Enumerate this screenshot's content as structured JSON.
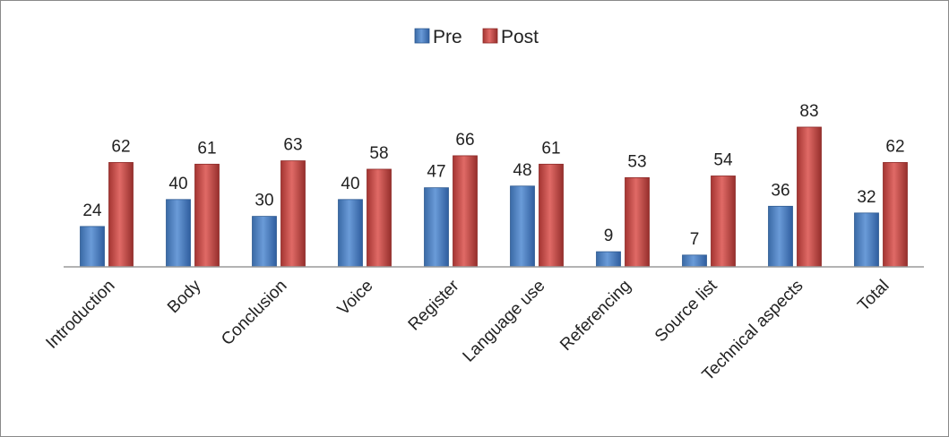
{
  "chart_data": {
    "type": "bar",
    "title": "",
    "xlabel": "",
    "ylabel": "",
    "ylim": [
      0,
      100
    ],
    "grid": false,
    "legend_position": "top",
    "categories": [
      "Introduction",
      "Body",
      "Conclusion",
      "Voice",
      "Register",
      "Language use",
      "Referencing",
      "Source list",
      "Technical aspects",
      "Total"
    ],
    "series": [
      {
        "name": "Pre",
        "color": "#4f81bd",
        "values": [
          24,
          40,
          30,
          40,
          47,
          48,
          9,
          7,
          36,
          32
        ]
      },
      {
        "name": "Post",
        "color": "#c0504d",
        "values": [
          62,
          61,
          63,
          58,
          66,
          61,
          53,
          54,
          83,
          62
        ]
      }
    ]
  }
}
